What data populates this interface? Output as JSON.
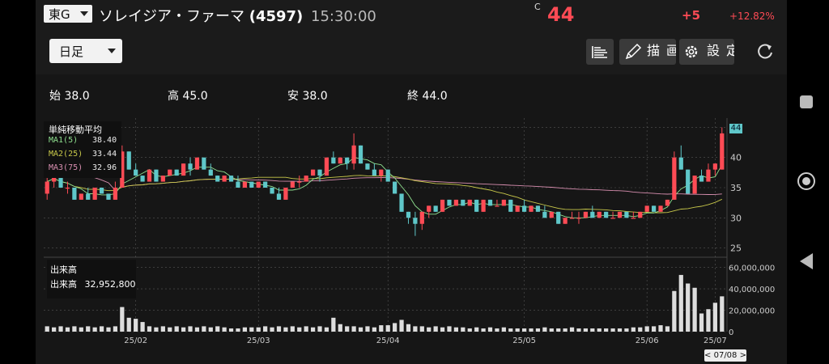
{
  "header": {
    "market": "東G",
    "name": "ソレイジア・ファーマ",
    "code": "(4597)",
    "time": "15:30:00",
    "price_prefix": "C",
    "price": "44",
    "change": "+5",
    "change_pct": "+12.82%"
  },
  "toolbar": {
    "period": "日足",
    "draw_label": "描画",
    "settings_label": "設定"
  },
  "ohlc": {
    "open": "始 38.0",
    "high": "高 45.0",
    "low": "安 38.0",
    "close": "終 44.0"
  },
  "ma_legend": {
    "title": "単純移動平均",
    "ma1_label": "MA1(5)",
    "ma1_value": "38.40",
    "ma2_label": "MA2(25)",
    "ma2_value": "33.44",
    "ma3_label": "MA3(75)",
    "ma3_value": "32.96"
  },
  "volume_legend": {
    "title": "出来高",
    "label": "出来高",
    "value": "32,952,800"
  },
  "date_badge": "< 07/08 >",
  "last_price_marker": "44",
  "colors": {
    "up": "#ff4b55",
    "down": "#5fc7c9",
    "ma1": "#8fe08f",
    "ma2": "#c8c84a",
    "ma3": "#d88fb0"
  },
  "chart_data": {
    "type": "candlestick",
    "x_ticks": [
      "25/02",
      "25/03",
      "25/04",
      "25/05",
      "25/06",
      "25/07"
    ],
    "price_axis": {
      "ticks": [
        25,
        30,
        35,
        40,
        45
      ],
      "range": [
        24,
        46
      ]
    },
    "volume_axis": {
      "ticks": [
        "0",
        "20,000,000",
        "40,000,000",
        "60,000,000"
      ],
      "range": [
        0,
        62000000
      ]
    },
    "candles": [
      [
        34,
        37,
        33,
        36
      ],
      [
        36,
        38,
        35,
        37
      ],
      [
        37,
        37,
        35,
        35
      ],
      [
        35,
        36,
        34,
        35
      ],
      [
        35,
        35,
        33,
        33
      ],
      [
        33,
        34,
        33,
        34
      ],
      [
        34,
        35,
        33,
        33
      ],
      [
        33,
        35,
        33,
        35
      ],
      [
        35,
        35,
        34,
        34
      ],
      [
        34,
        34,
        33,
        33
      ],
      [
        33,
        36,
        33,
        35
      ],
      [
        35,
        42,
        35,
        41
      ],
      [
        41,
        41,
        38,
        38
      ],
      [
        38,
        39,
        37,
        37
      ],
      [
        37,
        37,
        36,
        36
      ],
      [
        36,
        38,
        36,
        38
      ],
      [
        38,
        38,
        36,
        36
      ],
      [
        36,
        37,
        36,
        37
      ],
      [
        37,
        38,
        37,
        38
      ],
      [
        38,
        38,
        37,
        37
      ],
      [
        37,
        39,
        37,
        39
      ],
      [
        39,
        40,
        37,
        38
      ],
      [
        38,
        40,
        38,
        40
      ],
      [
        40,
        40,
        38,
        38
      ],
      [
        38,
        39,
        37,
        37
      ],
      [
        37,
        37,
        36,
        36
      ],
      [
        36,
        37,
        36,
        37
      ],
      [
        37,
        37,
        36,
        36
      ],
      [
        36,
        37,
        35,
        35
      ],
      [
        35,
        36,
        35,
        36
      ],
      [
        36,
        36,
        35,
        35
      ],
      [
        35,
        36,
        35,
        36
      ],
      [
        36,
        36,
        35,
        35
      ],
      [
        35,
        35,
        34,
        34
      ],
      [
        34,
        35,
        33,
        33
      ],
      [
        33,
        35,
        33,
        35
      ],
      [
        35,
        36,
        35,
        36
      ],
      [
        36,
        37,
        35,
        36
      ],
      [
        36,
        37,
        36,
        37
      ],
      [
        37,
        38,
        37,
        38
      ],
      [
        38,
        38,
        36,
        37
      ],
      [
        37,
        40,
        37,
        40
      ],
      [
        40,
        41,
        39,
        39
      ],
      [
        39,
        40,
        39,
        40
      ],
      [
        40,
        40,
        38,
        39
      ],
      [
        39,
        44,
        38,
        42
      ],
      [
        42,
        42,
        39,
        39
      ],
      [
        39,
        39,
        38,
        38
      ],
      [
        38,
        39,
        37,
        37
      ],
      [
        37,
        38,
        36,
        38
      ],
      [
        38,
        38,
        36,
        36
      ],
      [
        36,
        36,
        34,
        34
      ],
      [
        34,
        34,
        31,
        31
      ],
      [
        31,
        31,
        29,
        30
      ],
      [
        30,
        31,
        27,
        29
      ],
      [
        29,
        31,
        28,
        31
      ],
      [
        31,
        32,
        30,
        32
      ],
      [
        32,
        32,
        31,
        31
      ],
      [
        31,
        33,
        31,
        33
      ],
      [
        33,
        33,
        32,
        32
      ],
      [
        32,
        33,
        32,
        33
      ],
      [
        33,
        33,
        32,
        32
      ],
      [
        32,
        33,
        32,
        33
      ],
      [
        33,
        33,
        31,
        31
      ],
      [
        31,
        33,
        31,
        33
      ],
      [
        33,
        33,
        32,
        32
      ],
      [
        32,
        33,
        32,
        32
      ],
      [
        32,
        33,
        32,
        33
      ],
      [
        33,
        33,
        31,
        31
      ],
      [
        31,
        32,
        31,
        32
      ],
      [
        32,
        33,
        31,
        31
      ],
      [
        31,
        32,
        31,
        32
      ],
      [
        32,
        32,
        31,
        31
      ],
      [
        31,
        32,
        30,
        30
      ],
      [
        30,
        31,
        30,
        31
      ],
      [
        31,
        31,
        29,
        29
      ],
      [
        29,
        30,
        29,
        30
      ],
      [
        30,
        31,
        30,
        30
      ],
      [
        30,
        31,
        29,
        30
      ],
      [
        30,
        31,
        30,
        31
      ],
      [
        31,
        32,
        30,
        30
      ],
      [
        30,
        31,
        30,
        31
      ],
      [
        31,
        31,
        30,
        30
      ],
      [
        30,
        31,
        30,
        30
      ],
      [
        30,
        31,
        30,
        31
      ],
      [
        31,
        31,
        30,
        30
      ],
      [
        30,
        31,
        30,
        30
      ],
      [
        30,
        31,
        30,
        31
      ],
      [
        31,
        32,
        31,
        32
      ],
      [
        32,
        32,
        31,
        31
      ],
      [
        31,
        32,
        31,
        32
      ],
      [
        32,
        33,
        32,
        33
      ],
      [
        33,
        41,
        33,
        40
      ],
      [
        40,
        42,
        38,
        38
      ],
      [
        38,
        38,
        34,
        34
      ],
      [
        34,
        37,
        34,
        37
      ],
      [
        37,
        38,
        36,
        36
      ],
      [
        36,
        39,
        36,
        38
      ],
      [
        38,
        39,
        37,
        39
      ],
      [
        38,
        45,
        38,
        44
      ]
    ],
    "volumes_m": [
      5,
      4,
      5,
      4,
      5,
      4,
      5,
      4,
      5,
      4,
      5,
      23,
      13,
      12,
      9,
      5,
      4,
      5,
      4,
      5,
      4,
      5,
      4,
      5,
      4,
      5,
      4,
      3,
      3,
      4,
      4,
      4,
      5,
      4,
      5,
      4,
      5,
      4,
      5,
      4,
      5,
      4,
      13,
      7,
      5,
      5,
      4,
      5,
      4,
      6,
      6,
      8,
      11,
      7,
      5,
      5,
      4,
      5,
      4,
      5,
      4,
      4,
      3,
      4,
      3,
      4,
      3,
      4,
      3,
      3,
      3,
      3,
      3,
      4,
      3,
      3,
      3,
      4,
      3,
      3,
      3,
      3,
      3,
      3,
      3,
      3,
      4,
      4,
      5,
      5,
      6,
      5,
      38,
      53,
      45,
      41,
      17,
      21,
      27,
      33
    ]
  }
}
